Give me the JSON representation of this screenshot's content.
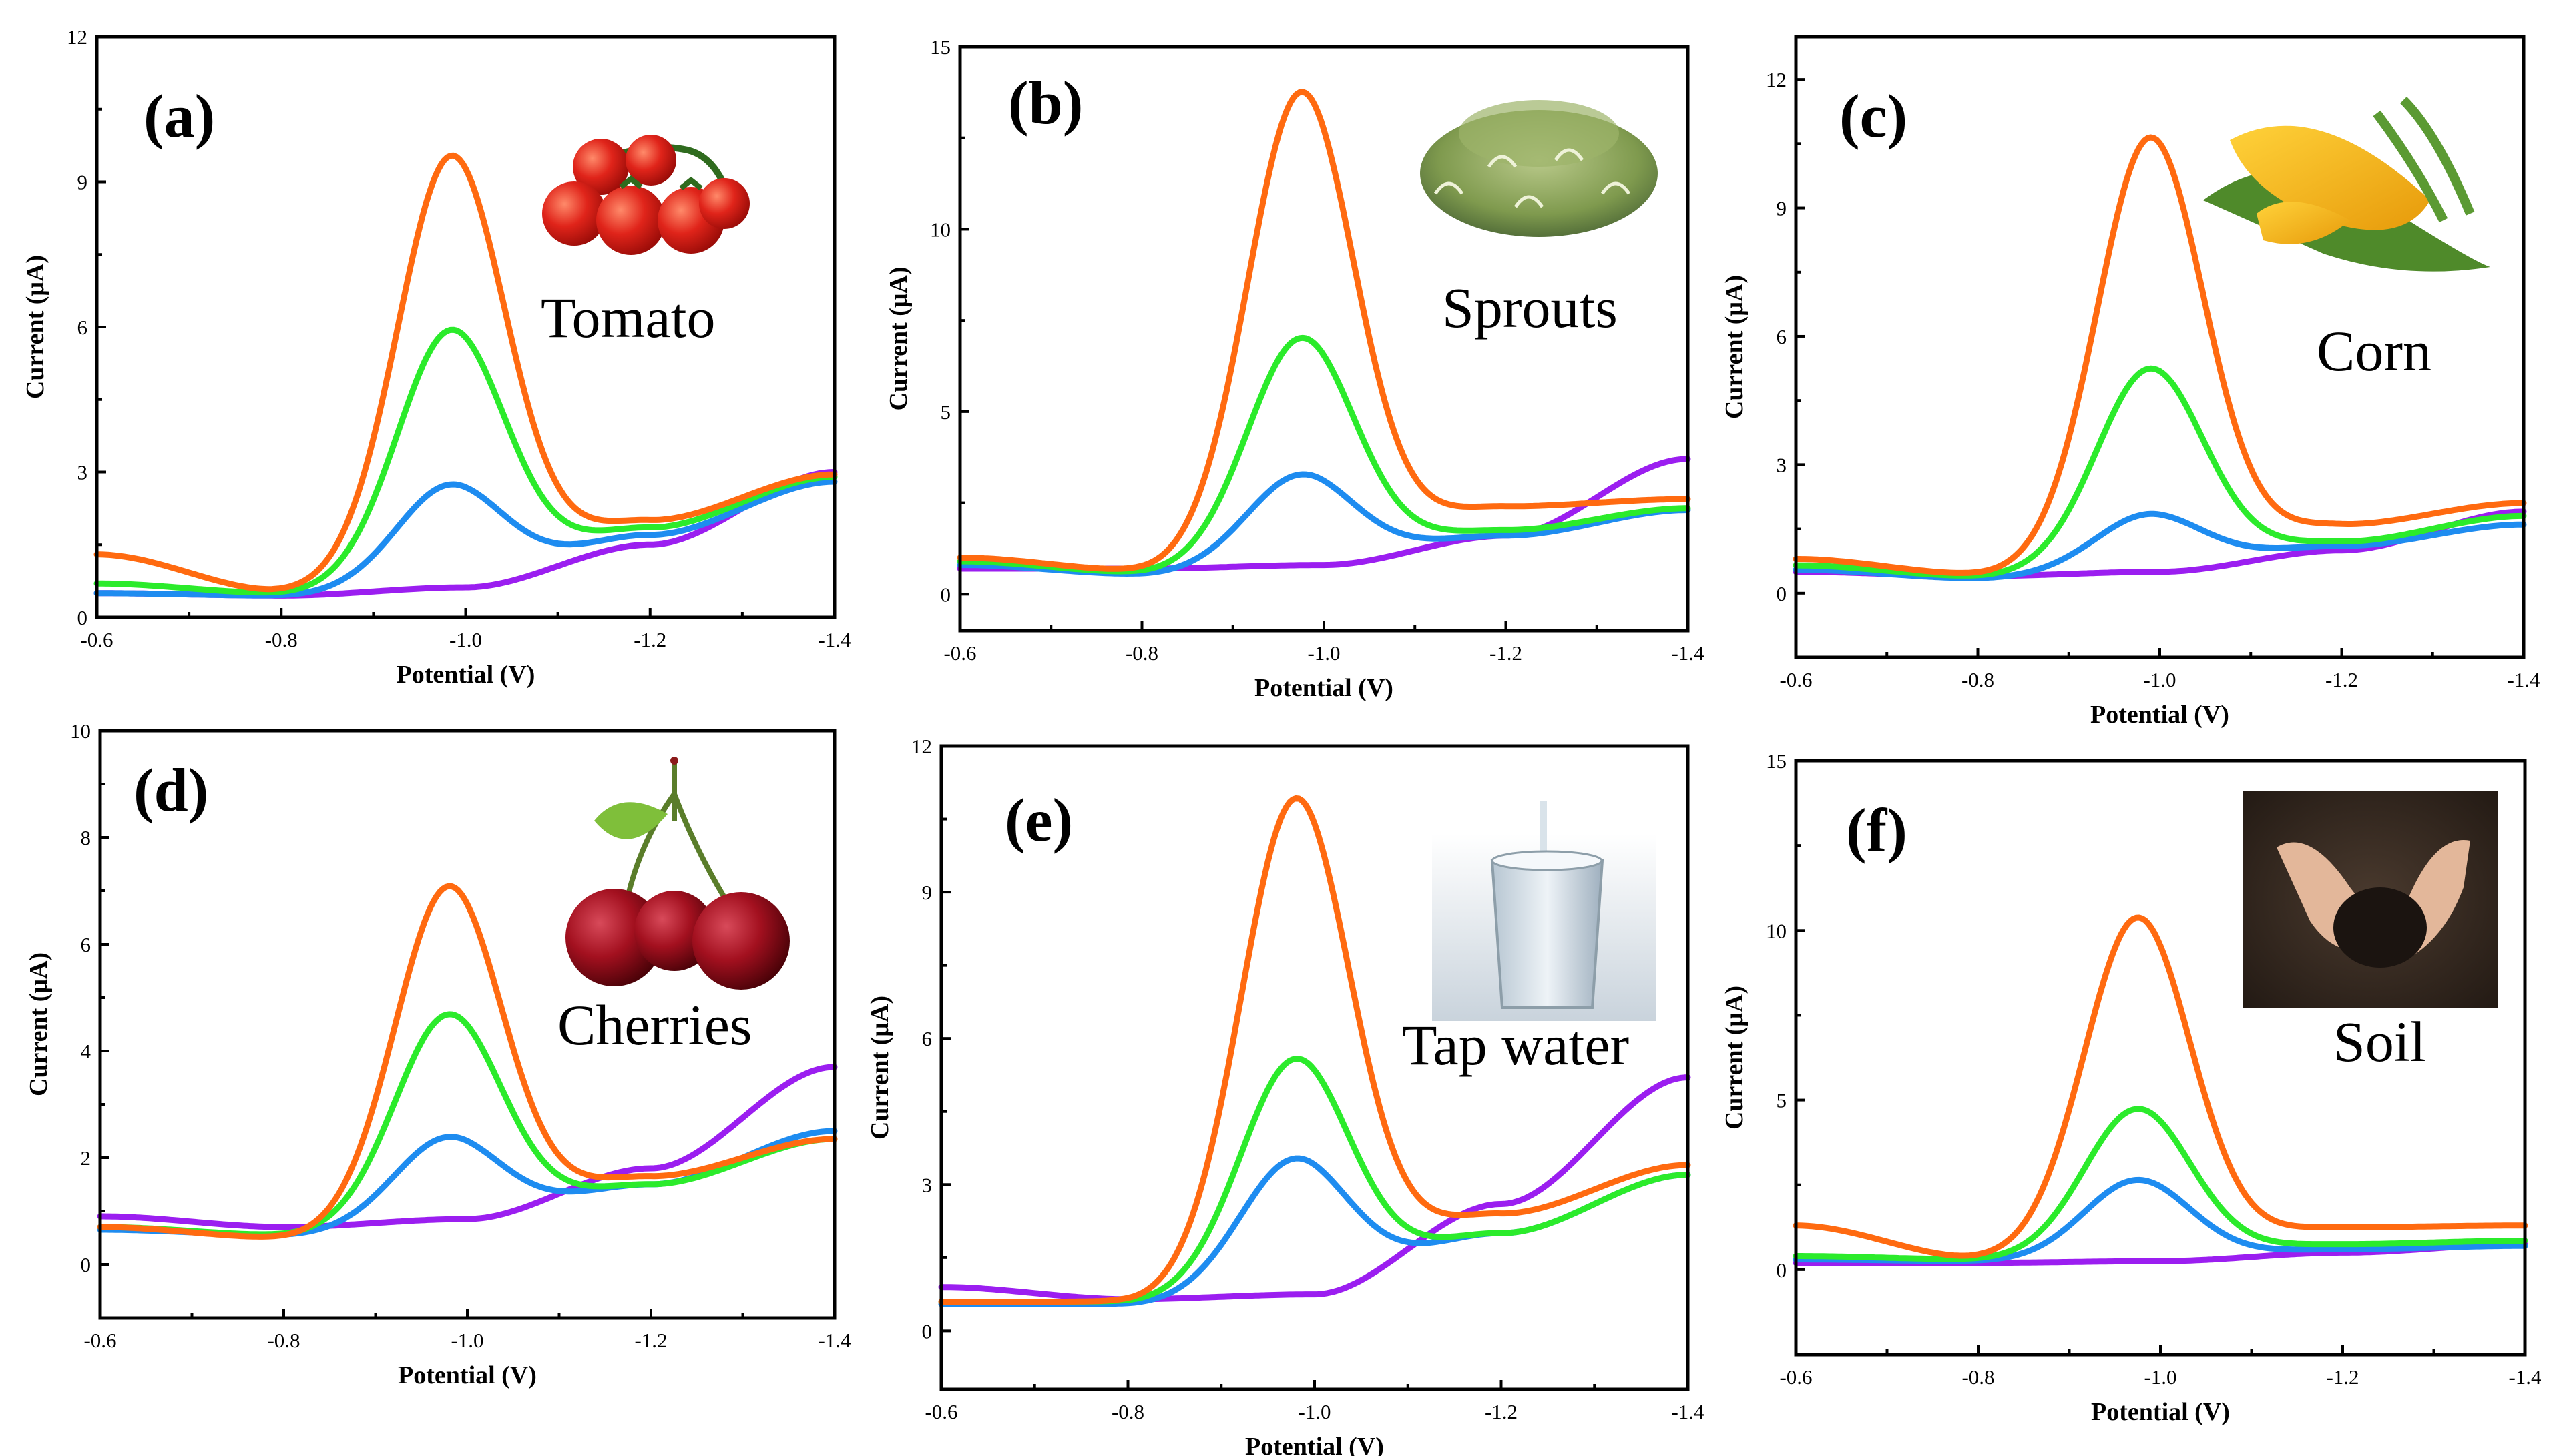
{
  "series_colors": {
    "purple": "#9B1EF0",
    "blue": "#1E8CF0",
    "green": "#2BEB2B",
    "orange": "#FF6A10"
  },
  "chart_data": [
    {
      "panel": "(a)",
      "sample": "Tomato",
      "type": "line",
      "xlabel": "Potential (V)",
      "ylabel": "Current (μA)",
      "xlim": [
        -0.6,
        -1.4
      ],
      "ylim": [
        0,
        12
      ],
      "xticks": [
        -0.6,
        -0.8,
        -1.0,
        -1.2,
        -1.4
      ],
      "xtick_labels": [
        "-0.6",
        "-0.8",
        "-1.0",
        "-1.2",
        "-1.4"
      ],
      "yticks": [
        0,
        3,
        6,
        9,
        12
      ],
      "ytick_labels": [
        "0",
        "3",
        "6",
        "9",
        "12"
      ],
      "peak_potential": -0.985,
      "series": [
        {
          "name": "purple",
          "color": "#9B1EF0",
          "baseline": [
            0.5,
            0.45,
            0.62,
            1.5,
            3.0
          ],
          "peak": 0
        },
        {
          "name": "blue",
          "color": "#1E8CF0",
          "baseline": [
            0.5,
            0.45,
            0.8,
            1.7,
            2.8
          ],
          "peak": 1.95
        },
        {
          "name": "green",
          "color": "#2BEB2B",
          "baseline": [
            0.7,
            0.5,
            0.95,
            1.85,
            2.9
          ],
          "peak": 5.0
        },
        {
          "name": "orange",
          "color": "#FF6A10",
          "baseline": [
            1.3,
            0.55,
            1.05,
            2.0,
            2.95
          ],
          "peak": 8.5
        }
      ]
    },
    {
      "panel": "(b)",
      "sample": "Sprouts",
      "type": "line",
      "xlabel": "Potential (V)",
      "ylabel": "Current (μA)",
      "xlim": [
        -0.6,
        -1.4
      ],
      "ylim": [
        -1,
        15
      ],
      "xticks": [
        -0.6,
        -0.8,
        -1.0,
        -1.2,
        -1.4
      ],
      "xtick_labels": [
        "-0.6",
        "-0.8",
        "-1.0",
        "-1.2",
        "-1.4"
      ],
      "yticks": [
        0,
        5,
        10,
        15
      ],
      "ytick_labels": [
        "0",
        "5",
        "10",
        "15"
      ],
      "peak_potential": -0.975,
      "series": [
        {
          "name": "purple",
          "color": "#9B1EF0",
          "baseline": [
            0.7,
            0.7,
            0.8,
            1.6,
            3.7
          ],
          "peak": 0
        },
        {
          "name": "blue",
          "color": "#1E8CF0",
          "baseline": [
            0.8,
            0.55,
            1.1,
            1.6,
            2.3
          ],
          "peak": 2.2
        },
        {
          "name": "green",
          "color": "#2BEB2B",
          "baseline": [
            0.9,
            0.6,
            1.3,
            1.75,
            2.35
          ],
          "peak": 5.75
        },
        {
          "name": "orange",
          "color": "#FF6A10",
          "baseline": [
            1.0,
            0.65,
            1.6,
            2.4,
            2.6
          ],
          "peak": 12.2
        }
      ]
    },
    {
      "panel": "(c)",
      "sample": "Corn",
      "type": "line",
      "xlabel": "Potential (V)",
      "ylabel": "Current (μA)",
      "xlim": [
        -0.6,
        -1.4
      ],
      "ylim": [
        -1.5,
        13
      ],
      "xticks": [
        -0.6,
        -0.8,
        -1.0,
        -1.2,
        -1.4
      ],
      "xtick_labels": [
        "-0.6",
        "-0.8",
        "-1.0",
        "-1.2",
        "-1.4"
      ],
      "yticks": [
        0,
        3,
        6,
        9,
        12
      ],
      "ytick_labels": [
        "0",
        "3",
        "6",
        "9",
        "12"
      ],
      "peak_potential": -0.99,
      "series": [
        {
          "name": "purple",
          "color": "#9B1EF0",
          "baseline": [
            0.5,
            0.4,
            0.5,
            1.0,
            1.9
          ],
          "peak": 0
        },
        {
          "name": "blue",
          "color": "#1E8CF0",
          "baseline": [
            0.55,
            0.35,
            0.7,
            1.1,
            1.6
          ],
          "peak": 1.15
        },
        {
          "name": "green",
          "color": "#2BEB2B",
          "baseline": [
            0.65,
            0.4,
            0.85,
            1.2,
            1.8
          ],
          "peak": 4.4
        },
        {
          "name": "orange",
          "color": "#FF6A10",
          "baseline": [
            0.8,
            0.45,
            1.05,
            1.6,
            2.1
          ],
          "peak": 9.6
        }
      ]
    },
    {
      "panel": "(d)",
      "sample": "Cherries",
      "type": "line",
      "xlabel": "Potential (V)",
      "ylabel": "Current (μA)",
      "xlim": [
        -0.6,
        -1.4
      ],
      "ylim": [
        -1,
        10
      ],
      "xticks": [
        -0.6,
        -0.8,
        -1.0,
        -1.2,
        -1.4
      ],
      "xtick_labels": [
        "-0.6",
        "-0.8",
        "-1.0",
        "-1.2",
        "-1.4"
      ],
      "yticks": [
        0,
        2,
        4,
        6,
        8,
        10
      ],
      "ytick_labels": [
        "0",
        "2",
        "4",
        "6",
        "8",
        "10"
      ],
      "peak_potential": -0.98,
      "series": [
        {
          "name": "purple",
          "color": "#9B1EF0",
          "baseline": [
            0.9,
            0.7,
            0.85,
            1.8,
            3.7
          ],
          "peak": 0
        },
        {
          "name": "blue",
          "color": "#1E8CF0",
          "baseline": [
            0.65,
            0.55,
            0.9,
            1.5,
            2.5
          ],
          "peak": 1.5
        },
        {
          "name": "green",
          "color": "#2BEB2B",
          "baseline": [
            0.7,
            0.55,
            0.95,
            1.5,
            2.35
          ],
          "peak": 3.75
        },
        {
          "name": "orange",
          "color": "#FF6A10",
          "baseline": [
            0.7,
            0.5,
            1.0,
            1.65,
            2.35
          ],
          "peak": 6.1
        }
      ]
    },
    {
      "panel": "(e)",
      "sample": "Tap water",
      "type": "line",
      "xlabel": "Potential (V)",
      "ylabel": "Current (μA)",
      "xlim": [
        -0.6,
        -1.4
      ],
      "ylim": [
        -1.2,
        12
      ],
      "xticks": [
        -0.6,
        -0.8,
        -1.0,
        -1.2,
        -1.4
      ],
      "xtick_labels": [
        "-0.6",
        "-0.8",
        "-1.0",
        "-1.2",
        "-1.4"
      ],
      "yticks": [
        0,
        3,
        6,
        9,
        12
      ],
      "ytick_labels": [
        "0",
        "3",
        "6",
        "9",
        "12"
      ],
      "peak_potential": -0.98,
      "series": [
        {
          "name": "purple",
          "color": "#9B1EF0",
          "baseline": [
            0.9,
            0.65,
            0.75,
            2.6,
            5.2
          ],
          "peak": 0
        },
        {
          "name": "blue",
          "color": "#1E8CF0",
          "baseline": [
            0.55,
            0.55,
            1.05,
            2.0,
            3.2
          ],
          "peak": 2.5
        },
        {
          "name": "green",
          "color": "#2BEB2B",
          "baseline": [
            0.6,
            0.6,
            1.2,
            2.0,
            3.2
          ],
          "peak": 4.4
        },
        {
          "name": "orange",
          "color": "#FF6A10",
          "baseline": [
            0.6,
            0.6,
            1.45,
            2.4,
            3.4
          ],
          "peak": 9.5
        }
      ]
    },
    {
      "panel": "(f)",
      "sample": "Soil",
      "type": "line",
      "xlabel": "Potential (V)",
      "ylabel": "Current (μA)",
      "xlim": [
        -0.6,
        -1.4
      ],
      "ylim": [
        -2.5,
        15
      ],
      "xticks": [
        -0.6,
        -0.8,
        -1.0,
        -1.2,
        -1.4
      ],
      "xtick_labels": [
        "-0.6",
        "-0.8",
        "-1.0",
        "-1.2",
        "-1.4"
      ],
      "yticks": [
        0,
        5,
        10,
        15
      ],
      "ytick_labels": [
        "0",
        "5",
        "10",
        "15"
      ],
      "peak_potential": -0.975,
      "series": [
        {
          "name": "purple",
          "color": "#9B1EF0",
          "baseline": [
            0.2,
            0.2,
            0.25,
            0.5,
            0.75
          ],
          "peak": 0
        },
        {
          "name": "blue",
          "color": "#1E8CF0",
          "baseline": [
            0.3,
            0.25,
            0.4,
            0.6,
            0.7
          ],
          "peak": 2.25
        },
        {
          "name": "green",
          "color": "#2BEB2B",
          "baseline": [
            0.4,
            0.3,
            0.55,
            0.75,
            0.85
          ],
          "peak": 4.2
        },
        {
          "name": "orange",
          "color": "#FF6A10",
          "baseline": [
            1.3,
            0.35,
            0.8,
            1.25,
            1.3
          ],
          "peak": 9.6
        }
      ]
    }
  ]
}
